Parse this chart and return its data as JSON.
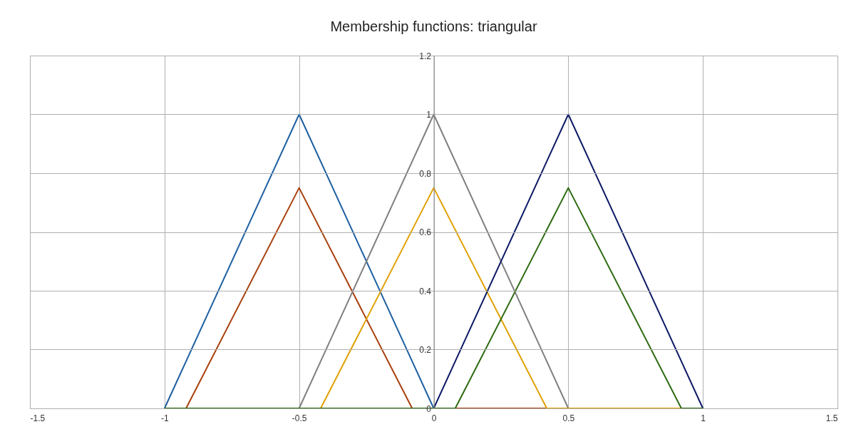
{
  "chart_data": {
    "type": "line",
    "title": "Membership functions: triangular",
    "xlim": [
      -1.5,
      1.5
    ],
    "xticks": [
      -1.5,
      -1,
      -0.5,
      0,
      0.5,
      1,
      1.5
    ],
    "ylim": [
      0,
      1.2
    ],
    "yticks": [
      0,
      0.2,
      0.4,
      0.6,
      0.8,
      1,
      1.2
    ],
    "grid": true,
    "series": [
      {
        "color": "#1f5fa0",
        "x": [
          -1,
          -0.5,
          0,
          1
        ],
        "values": [
          0,
          1,
          0,
          0
        ]
      },
      {
        "color": "#a8400e",
        "x": [
          -1,
          -0.92,
          -0.5,
          -0.08,
          1
        ],
        "values": [
          0,
          0,
          0.75,
          0,
          0
        ]
      },
      {
        "color": "#7f7f7f",
        "x": [
          -1,
          -0.5,
          0,
          0.5,
          1
        ],
        "values": [
          0,
          0,
          1,
          0,
          0
        ]
      },
      {
        "color": "#e0a000",
        "x": [
          -1,
          -0.42,
          0,
          0.42,
          1
        ],
        "values": [
          0,
          0,
          0.75,
          0,
          0
        ]
      },
      {
        "color": "#0d1a66",
        "x": [
          -1,
          0,
          0.5,
          1
        ],
        "values": [
          0,
          0,
          1,
          0
        ]
      },
      {
        "color": "#2d6a12",
        "x": [
          -1,
          0.08,
          0.5,
          0.92,
          1
        ],
        "values": [
          0,
          0,
          0.75,
          0,
          0
        ]
      }
    ]
  }
}
